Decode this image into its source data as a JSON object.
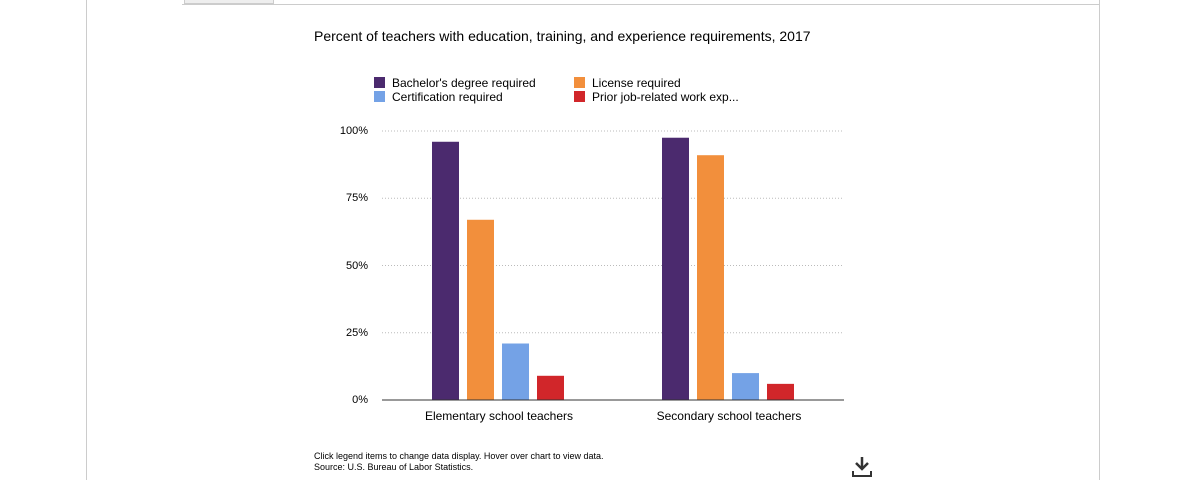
{
  "chart_data": {
    "type": "bar",
    "title": "Percent of teachers with education, training, and experience requirements, 2017",
    "categories": [
      "Elementary school teachers",
      "Secondary school teachers"
    ],
    "series": [
      {
        "name": "Bachelor's degree required",
        "color": "#4b2a6e",
        "values": [
          96,
          97.5
        ]
      },
      {
        "name": "License required",
        "color": "#f28f3c",
        "values": [
          67,
          91
        ]
      },
      {
        "name": "Certification required",
        "color": "#74a2e6",
        "values": [
          21,
          10
        ]
      },
      {
        "name": "Prior job-related work exp...",
        "color": "#d1262a",
        "values": [
          9,
          6
        ]
      }
    ],
    "yticks": [
      "0%",
      "25%",
      "50%",
      "75%",
      "100%"
    ],
    "ylim": [
      0,
      100
    ],
    "grid": true,
    "legend_position": "top"
  },
  "footer": {
    "note": "Click legend items to change data display. Hover over chart to view data.",
    "source": "Source: U.S. Bureau of Labor Statistics."
  },
  "icons": {
    "download": "download-icon"
  }
}
